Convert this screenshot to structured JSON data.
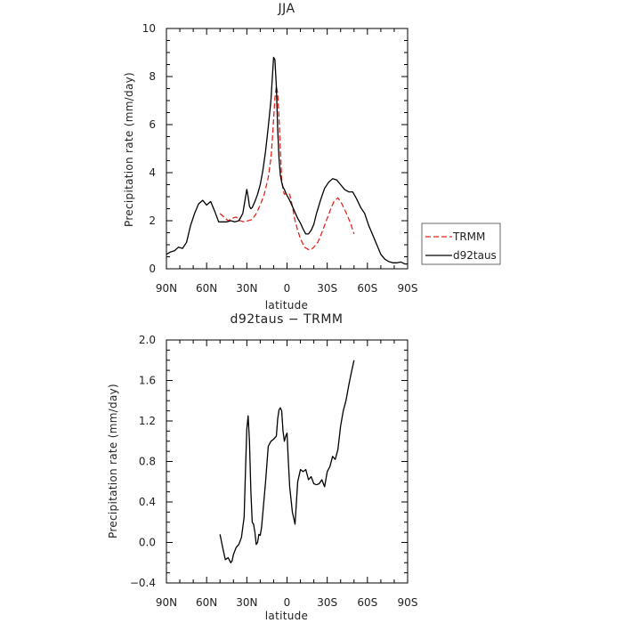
{
  "chart_data": [
    {
      "type": "line",
      "title": "JJA",
      "xlabel": "latitude",
      "ylabel": "Precipitation rate (mm/day)",
      "xlim": [
        90,
        -90
      ],
      "ylim": [
        0,
        10
      ],
      "xticks": [
        90,
        60,
        30,
        0,
        -30,
        -60,
        -90
      ],
      "xtick_labels": [
        "90N",
        "60N",
        "30N",
        "0",
        "30S",
        "60S",
        "90S"
      ],
      "yticks": [
        0,
        2,
        4,
        6,
        8,
        10
      ],
      "ytick_labels": [
        "0",
        "2",
        "4",
        "6",
        "8",
        "10"
      ],
      "legend_position": "right",
      "series": [
        {
          "name": "TRMM",
          "color": "#e8241e",
          "dash": true,
          "x": [
            50,
            47,
            44,
            41,
            38,
            35,
            32,
            29,
            26,
            23,
            20,
            17,
            14,
            12,
            11,
            10,
            9,
            8,
            7,
            6,
            5,
            4,
            3,
            2,
            0,
            -2,
            -4,
            -6,
            -8,
            -10,
            -13,
            -16,
            -18,
            -20,
            -23,
            -26,
            -29,
            -32,
            -35,
            -38,
            -41,
            -44,
            -47,
            -50
          ],
          "y": [
            2.3,
            2.15,
            2.0,
            2.1,
            2.15,
            2.0,
            1.95,
            2.0,
            2.05,
            2.3,
            2.65,
            3.1,
            3.8,
            4.6,
            5.3,
            6.2,
            7.1,
            7.6,
            7.3,
            6.3,
            5.0,
            3.7,
            3.3,
            3.1,
            3.15,
            3.1,
            2.6,
            2.0,
            1.6,
            1.25,
            0.9,
            0.8,
            0.8,
            0.9,
            1.1,
            1.5,
            1.95,
            2.4,
            2.8,
            2.95,
            2.7,
            2.35,
            1.95,
            1.45
          ]
        },
        {
          "name": "d92taus",
          "color": "#000000",
          "dash": false,
          "x": [
            90,
            87,
            84,
            81,
            78,
            75,
            72,
            69,
            66,
            63,
            60,
            57,
            54,
            51,
            48,
            45,
            42,
            39,
            36,
            33,
            30,
            29,
            28,
            27,
            26,
            24,
            22,
            20,
            18,
            16,
            14,
            12,
            11,
            10,
            9,
            8,
            7,
            6,
            5,
            4,
            3,
            2,
            0,
            -2,
            -4,
            -6,
            -8,
            -10,
            -12,
            -14,
            -16,
            -18,
            -20,
            -22,
            -25,
            -28,
            -31,
            -34,
            -37,
            -40,
            -43,
            -46,
            -49,
            -52,
            -55,
            -58,
            -61,
            -64,
            -67,
            -70,
            -73,
            -76,
            -79,
            -82,
            -85,
            -88,
            -90
          ],
          "y": [
            0.6,
            0.7,
            0.75,
            0.9,
            0.85,
            1.1,
            1.8,
            2.3,
            2.7,
            2.85,
            2.65,
            2.8,
            2.4,
            1.95,
            1.95,
            1.95,
            2.0,
            1.95,
            2.0,
            2.3,
            3.3,
            3.0,
            2.6,
            2.5,
            2.55,
            2.8,
            3.1,
            3.5,
            4.1,
            4.9,
            5.9,
            7.0,
            7.9,
            8.8,
            8.7,
            7.6,
            5.8,
            4.6,
            3.9,
            3.6,
            3.4,
            3.3,
            3.05,
            2.85,
            2.6,
            2.35,
            2.1,
            1.9,
            1.65,
            1.45,
            1.45,
            1.6,
            1.85,
            2.3,
            2.85,
            3.35,
            3.6,
            3.75,
            3.7,
            3.5,
            3.3,
            3.2,
            3.2,
            2.9,
            2.55,
            2.3,
            1.8,
            1.4,
            1.0,
            0.6,
            0.4,
            0.3,
            0.25,
            0.25,
            0.28,
            0.2,
            0.2
          ]
        }
      ]
    },
    {
      "type": "line",
      "title": "d92taus − TRMM",
      "xlabel": "latitude",
      "ylabel": "Precipitation rate (mm/day)",
      "xlim": [
        90,
        -90
      ],
      "ylim": [
        -0.4,
        2.0
      ],
      "xticks": [
        90,
        60,
        30,
        0,
        -30,
        -60,
        -90
      ],
      "xtick_labels": [
        "90N",
        "60N",
        "30N",
        "0",
        "30S",
        "60S",
        "90S"
      ],
      "yticks": [
        -0.4,
        0,
        0.4,
        0.8,
        1.2,
        1.6,
        2.0
      ],
      "ytick_labels": [
        "−0.4",
        "0.0",
        "0.4",
        "0.8",
        "1.2",
        "1.6",
        "2.0"
      ],
      "series": [
        {
          "name": "",
          "color": "#000000",
          "dash": false,
          "x": [
            50,
            48,
            46,
            44,
            42,
            41,
            40,
            38,
            36,
            34,
            32,
            31,
            30,
            29,
            28,
            27,
            26,
            25,
            24,
            23,
            22,
            21,
            20,
            19,
            18,
            16,
            14,
            12,
            10,
            8,
            7,
            6,
            5,
            4,
            3,
            2,
            1,
            0,
            -1,
            -2,
            -4,
            -6,
            -8,
            -10,
            -12,
            -14,
            -16,
            -18,
            -20,
            -22,
            -24,
            -26,
            -28,
            -30,
            -32,
            -34,
            -36,
            -38,
            -40,
            -42,
            -44,
            -46,
            -48,
            -50
          ],
          "y": [
            0.08,
            -0.05,
            -0.17,
            -0.15,
            -0.2,
            -0.18,
            -0.12,
            -0.05,
            -0.02,
            0.05,
            0.25,
            0.7,
            1.12,
            1.25,
            1.0,
            0.5,
            0.2,
            0.18,
            0.1,
            -0.02,
            0.0,
            0.08,
            0.07,
            0.15,
            0.3,
            0.6,
            0.95,
            1.0,
            1.02,
            1.05,
            1.22,
            1.31,
            1.33,
            1.3,
            1.1,
            1.0,
            1.05,
            1.08,
            0.8,
            0.55,
            0.3,
            0.18,
            0.6,
            0.72,
            0.7,
            0.72,
            0.62,
            0.65,
            0.58,
            0.57,
            0.58,
            0.62,
            0.55,
            0.7,
            0.75,
            0.85,
            0.82,
            0.92,
            1.15,
            1.3,
            1.4,
            1.55,
            1.68,
            1.8
          ]
        }
      ]
    }
  ]
}
